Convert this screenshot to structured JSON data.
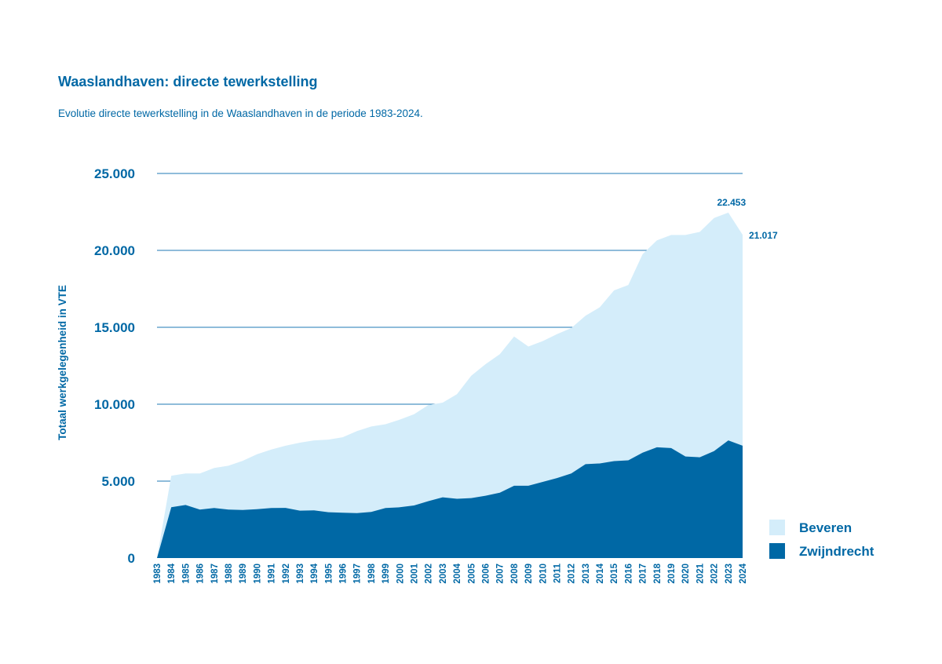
{
  "title": "Waaslandhaven: directe tewerkstelling",
  "subtitle": "Evolutie directe tewerkstelling in de Waaslandhaven in de periode 1983-2024.",
  "colors": {
    "beveren": "#d4edfa",
    "zwijndrecht": "#0068a5",
    "text": "#0068a5",
    "grid": "#1f78b4"
  },
  "chart_data": {
    "type": "area",
    "stacked": true,
    "ylabel": "Totaal werkgelegenheid in VTE",
    "xlabel": "",
    "ylim": [
      0,
      25000
    ],
    "yticks": [
      0,
      5000,
      10000,
      15000,
      20000,
      25000
    ],
    "ytick_labels": [
      "0",
      "5.000",
      "10.000",
      "15.000",
      "20.000",
      "25.000"
    ],
    "grid": true,
    "legend": "bottom-right",
    "x": [
      "1983",
      "1984",
      "1985",
      "1986",
      "1987",
      "1988",
      "1989",
      "1990",
      "1991",
      "1992",
      "1993",
      "1994",
      "1995",
      "1996",
      "1997",
      "1998",
      "1999",
      "2000",
      "2001",
      "2002",
      "2003",
      "2004",
      "2005",
      "2006",
      "2007",
      "2008",
      "2009",
      "2010",
      "2011",
      "2012",
      "2013",
      "2014",
      "2015",
      "2016",
      "2017",
      "2018",
      "2019",
      "2020",
      "2021",
      "2022",
      "2023",
      "2024"
    ],
    "series": [
      {
        "name": "Zwijndrecht",
        "color": "#0068a5",
        "values": [
          0,
          3300,
          3450,
          3150,
          3250,
          3150,
          3120,
          3180,
          3250,
          3260,
          3080,
          3100,
          2980,
          2950,
          2920,
          3000,
          3250,
          3300,
          3420,
          3700,
          3950,
          3850,
          3900,
          4050,
          4250,
          4700,
          4700,
          4950,
          5200,
          5500,
          6100,
          6150,
          6300,
          6350,
          6850,
          7200,
          7150,
          6600,
          6550,
          6950,
          7650,
          7300
        ]
      },
      {
        "name": "Beveren",
        "color": "#d4edfa",
        "values": [
          0,
          2050,
          2050,
          2350,
          2600,
          2850,
          3200,
          3570,
          3800,
          4040,
          4420,
          4550,
          4720,
          4900,
          5330,
          5550,
          5450,
          5700,
          5930,
          6250,
          6150,
          6800,
          7950,
          8550,
          9000,
          9700,
          9050,
          9150,
          9350,
          9450,
          9650,
          10150,
          11100,
          11400,
          12900,
          13450,
          13850,
          14400,
          14650,
          15150,
          14803,
          13717
        ]
      }
    ],
    "totals": [
      0,
      5350,
      5500,
      5500,
      5850,
      6000,
      6320,
      6750,
      7050,
      7300,
      7500,
      7650,
      7700,
      7850,
      8250,
      8550,
      8700,
      9000,
      9350,
      9950,
      10100,
      10650,
      11850,
      12600,
      13250,
      14400,
      13750,
      14100,
      14550,
      14950,
      15750,
      16300,
      17400,
      17750,
      19750,
      20650,
      21000,
      21000,
      21200,
      22100,
      22453,
      21017
    ],
    "data_labels": [
      {
        "x": "2023",
        "text": "22.453"
      },
      {
        "x": "2024",
        "text": "21.017"
      }
    ]
  }
}
